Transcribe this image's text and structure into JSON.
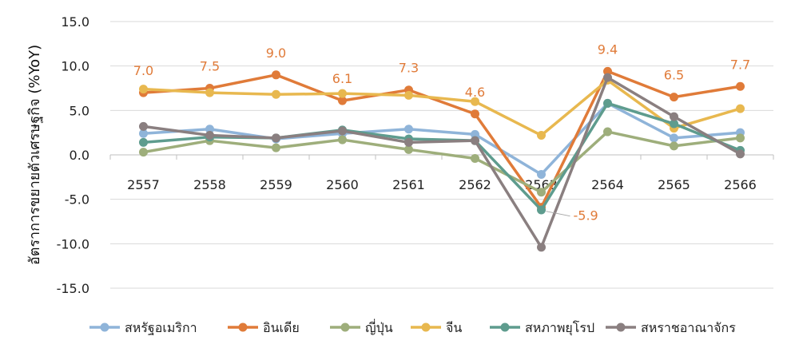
{
  "chart_data": {
    "type": "line",
    "title": "",
    "xlabel": "",
    "ylabel": "อัตราการขยายตัวเศรษฐกิจ (%YoY)",
    "ylim": [
      -15,
      15
    ],
    "yticks": [
      15.0,
      10.0,
      5.0,
      0.0,
      -5.0,
      -10.0,
      -15.0
    ],
    "ytick_labels": [
      "15.0",
      "10.0",
      "5.0",
      "0.0",
      "-5.0",
      "-10.0",
      "-15.0"
    ],
    "grid": "horizontal",
    "legend_position": "bottom",
    "categories": [
      "2557",
      "2558",
      "2559",
      "2560",
      "2561",
      "2562",
      "2563",
      "2564",
      "2565",
      "2566"
    ],
    "series": [
      {
        "name": "สหรัฐอเมริกา",
        "color": "#8FB4D9",
        "values": [
          2.4,
          2.9,
          1.8,
          2.4,
          2.9,
          2.3,
          -2.2,
          5.8,
          1.9,
          2.5
        ]
      },
      {
        "name": "อินเดีย",
        "color": "#E07B39",
        "values": [
          7.0,
          7.5,
          9.0,
          6.1,
          7.3,
          4.6,
          -5.9,
          9.4,
          6.5,
          7.7
        ],
        "labels": [
          "7.0",
          "7.5",
          "9.0",
          "6.1",
          "7.3",
          "4.6",
          "-5.9",
          "9.4",
          "6.5",
          "7.7"
        ]
      },
      {
        "name": "ญี่ปุ่น",
        "color": "#9EAE7B",
        "values": [
          0.3,
          1.6,
          0.8,
          1.7,
          0.6,
          -0.4,
          -4.2,
          2.6,
          1.0,
          1.9
        ]
      },
      {
        "name": "จีน",
        "color": "#E8B84F",
        "values": [
          7.4,
          7.0,
          6.8,
          6.9,
          6.7,
          6.0,
          2.2,
          8.4,
          3.0,
          5.2
        ]
      },
      {
        "name": "สหภาพยุโรป",
        "color": "#5E9C8E",
        "values": [
          1.4,
          2.0,
          1.9,
          2.8,
          1.8,
          1.6,
          -6.2,
          5.8,
          3.5,
          0.5
        ]
      },
      {
        "name": "สหราชอาณาจักร",
        "color": "#8A7F80",
        "values": [
          3.2,
          2.2,
          1.9,
          2.7,
          1.4,
          1.6,
          -10.4,
          8.7,
          4.3,
          0.1
        ]
      }
    ]
  }
}
